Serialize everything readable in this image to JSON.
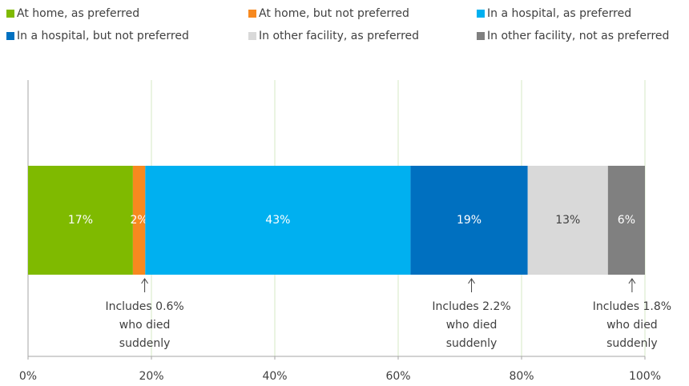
{
  "chart_data": {
    "type": "bar",
    "orientation": "horizontal",
    "stacked": true,
    "categories": [
      null
    ],
    "series": [
      {
        "name": "At home, as preferred",
        "color": "#7fba00",
        "values": [
          17
        ],
        "value_labels": [
          "17%"
        ]
      },
      {
        "name": "At home, but not preferred",
        "color": "#f7891f",
        "values": [
          2
        ],
        "value_labels": [
          "2%"
        ]
      },
      {
        "name": "In a hospital, as preferred",
        "color": "#00b0f0",
        "values": [
          43
        ],
        "value_labels": [
          "43%"
        ]
      },
      {
        "name": "In a hospital, but not preferred",
        "color": "#0070c0",
        "values": [
          19
        ],
        "value_labels": [
          "19%"
        ]
      },
      {
        "name": "In other facility, as preferred",
        "color": "#d9d9d9",
        "values": [
          13
        ],
        "value_labels": [
          "13%"
        ]
      },
      {
        "name": "In other facility, not as preferred",
        "color": "#808080",
        "values": [
          6
        ],
        "value_labels": [
          "6%"
        ]
      }
    ],
    "xlim": [
      0,
      100
    ],
    "xticks": [
      {
        "value": 0,
        "label": "0%"
      },
      {
        "value": 20,
        "label": "20%"
      },
      {
        "value": 40,
        "label": "40%"
      },
      {
        "value": 60,
        "label": "60%"
      },
      {
        "value": 80,
        "label": "80%"
      },
      {
        "value": 100,
        "label": "100%"
      }
    ],
    "grid": true,
    "legend": "top",
    "annotations": [
      {
        "lines": [
          "Includes 0.6%",
          "who died",
          "suddenly"
        ]
      },
      {
        "lines": [
          "Includes 2.2%",
          "who died",
          "suddenly"
        ]
      },
      {
        "lines": [
          "Includes 1.8%",
          "who died",
          "suddenly"
        ]
      }
    ]
  }
}
